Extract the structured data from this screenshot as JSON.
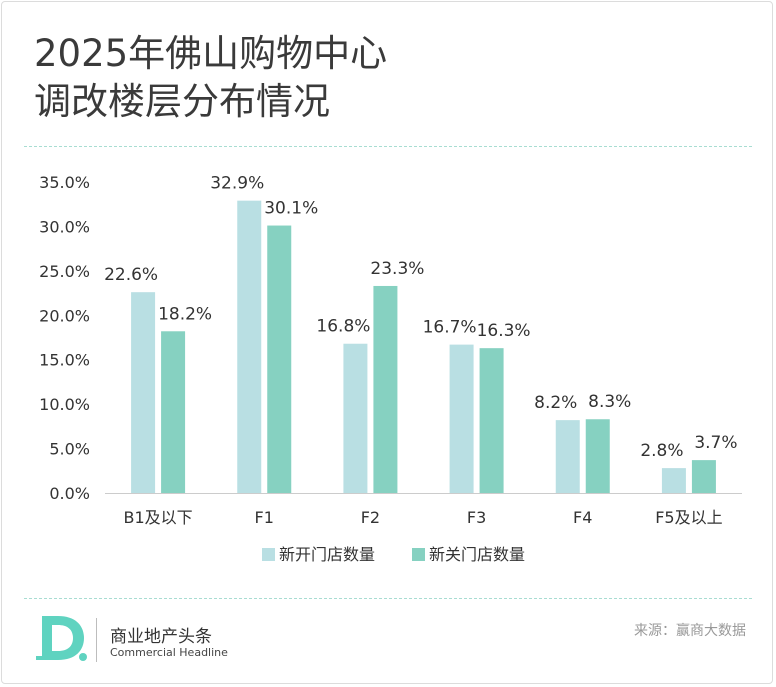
{
  "title": {
    "line1": "2025年佛山购物中心",
    "line2": "调改楼层分布情况"
  },
  "colors": {
    "new_open": "#b9dfe3",
    "new_close": "#86d1c1",
    "axis": "#cccccc",
    "text": "#333333",
    "rule": "#a8ddd2",
    "logo": "#5fd3c0"
  },
  "chart_data": {
    "type": "bar",
    "title": "2025年佛山购物中心调改楼层分布情况",
    "categories": [
      "B1及以下",
      "F1",
      "F2",
      "F3",
      "F4",
      "F5及以上"
    ],
    "series": [
      {
        "name": "新开门店数量",
        "values": [
          22.6,
          32.9,
          16.8,
          16.7,
          8.2,
          2.8
        ],
        "labels": [
          "22.6%",
          "32.9%",
          "16.8%",
          "16.7%",
          "8.2%",
          "2.8%"
        ]
      },
      {
        "name": "新关门店数量",
        "values": [
          18.2,
          30.1,
          23.3,
          16.3,
          8.3,
          3.7
        ],
        "labels": [
          "18.2%",
          "30.1%",
          "23.3%",
          "16.3%",
          "8.3%",
          "3.7%"
        ]
      }
    ],
    "yticks": [
      "0.0%",
      "5.0%",
      "10.0%",
      "15.0%",
      "20.0%",
      "25.0%",
      "30.0%",
      "35.0%"
    ],
    "ylim": [
      0,
      35
    ],
    "xlabel": "",
    "ylabel": "",
    "legend_position": "bottom-center",
    "grid": false
  },
  "footer": {
    "logo_letter": "D.",
    "brand_cn": "商业地产头条",
    "brand_en": "Commercial Headline",
    "source": "来源：赢商大数据"
  }
}
